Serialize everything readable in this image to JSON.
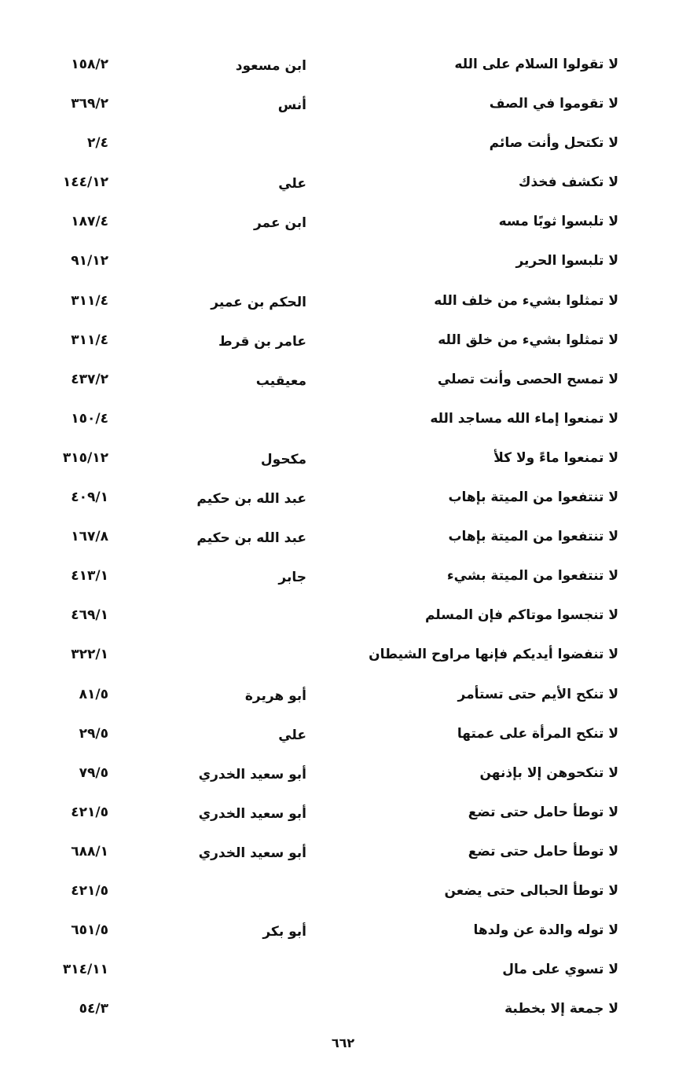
{
  "entries": [
    {
      "hadith": "لا تقولوا السلام على الله",
      "narrator": "ابن مسعود",
      "ref": "١٥٨/٢"
    },
    {
      "hadith": "لا تقوموا في الصف",
      "narrator": "أنس",
      "ref": "٣٦٩/٢"
    },
    {
      "hadith": "لا تكتحل وأنت صائم",
      "narrator": "",
      "ref": "٢/٤"
    },
    {
      "hadith": "لا تكشف فخذك",
      "narrator": "علي",
      "ref": "١٤٤/١٢"
    },
    {
      "hadith": "لا تلبسوا ثوبًا مسه",
      "narrator": "ابن عمر",
      "ref": "١٨٧/٤"
    },
    {
      "hadith": "لا تلبسوا الحرير",
      "narrator": "",
      "ref": "٩١/١٢"
    },
    {
      "hadith": "لا تمثلوا بشيء من خلف الله",
      "narrator": "الحكم بن عمير",
      "ref": "٣١١/٤"
    },
    {
      "hadith": "لا تمثلوا بشيء من خلق الله",
      "narrator": "عامر بن قرط",
      "ref": "٣١١/٤"
    },
    {
      "hadith": "لا تمسح الحصى وأنت تصلي",
      "narrator": "معيقيب",
      "ref": "٤٣٧/٢"
    },
    {
      "hadith": "لا تمنعوا إماء الله مساجد الله",
      "narrator": "",
      "ref": "١٥٠/٤"
    },
    {
      "hadith": "لا تمنعوا ماءً ولا كلأ",
      "narrator": "مكحول",
      "ref": "٣١٥/١٢"
    },
    {
      "hadith": "لا تنتفعوا من الميتة بإهاب",
      "narrator": "عبد الله بن حكيم",
      "ref": "٤٠٩/١"
    },
    {
      "hadith": "لا تنتفعوا من الميتة بإهاب",
      "narrator": "عبد الله بن حكيم",
      "ref": "١٦٧/٨"
    },
    {
      "hadith": "لا تنتفعوا من الميتة بشيء",
      "narrator": "جابر",
      "ref": "٤١٣/١"
    },
    {
      "hadith": "لا تنجسوا موتاكم فإن المسلم",
      "narrator": "",
      "ref": "٤٦٩/١"
    },
    {
      "hadith": "لا تنفضوا أيديكم فإنها مراوح الشيطان",
      "narrator": "",
      "ref": "٣٢٢/١"
    },
    {
      "hadith": "لا تنكح الأيم حتى تستأمر",
      "narrator": "أبو هريرة",
      "ref": "٨١/٥"
    },
    {
      "hadith": "لا تنكح المرأة على عمتها",
      "narrator": "علي",
      "ref": "٢٩/٥"
    },
    {
      "hadith": "لا تنكحوهن إلا بإذنهن",
      "narrator": "أبو سعيد الخدري",
      "ref": "٧٩/٥"
    },
    {
      "hadith": "لا توطأ حامل حتى تضع",
      "narrator": "أبو سعيد الخدري",
      "ref": "٤٢١/٥"
    },
    {
      "hadith": "لا توطأ حامل حتى تضع",
      "narrator": "أبو سعيد الخدري",
      "ref": "٦٨٨/١"
    },
    {
      "hadith": "لا توطأ الحبالى حتى يضعن",
      "narrator": "",
      "ref": "٤٢١/٥"
    },
    {
      "hadith": "لا توله والدة عن ولدها",
      "narrator": "أبو بكر",
      "ref": "٦٥١/٥"
    },
    {
      "hadith": "لا تسوي على مال",
      "narrator": "",
      "ref": "٣١٤/١١"
    },
    {
      "hadith": "لا جمعة إلا بخطبة",
      "narrator": "",
      "ref": "٥٤/٣"
    }
  ],
  "page_number": "٦٦٢"
}
